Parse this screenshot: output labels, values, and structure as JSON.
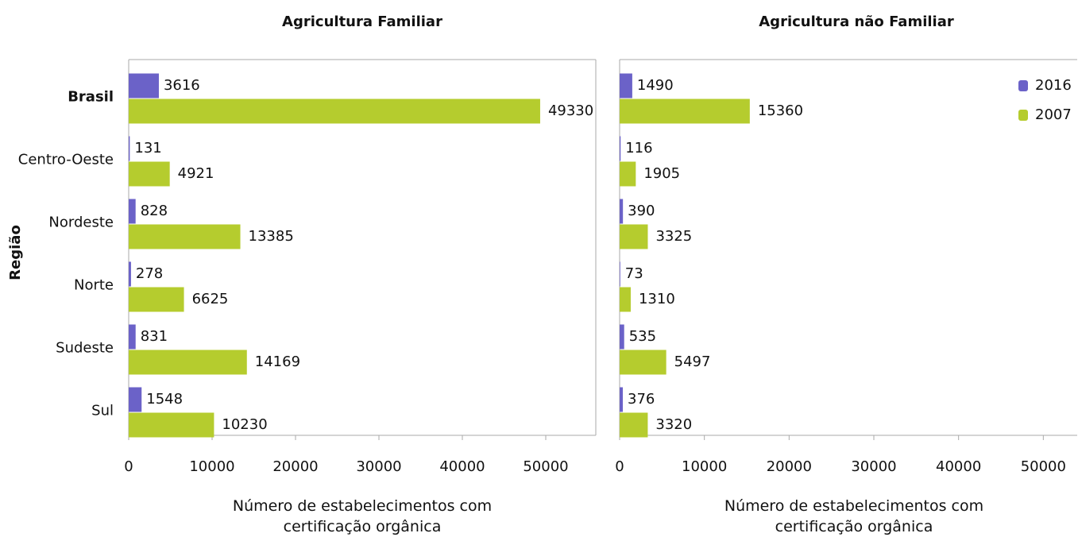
{
  "chart_data": [
    {
      "type": "hbar",
      "title": "Agricultura Familiar",
      "ylabel": "Região",
      "xlabel": "Número de estabelecimentos com certificação orgânica",
      "categories": [
        "Brasil",
        "Centro-Oeste",
        "Nordeste",
        "Norte",
        "Sudeste",
        "Sul"
      ],
      "series": [
        {
          "name": "2016",
          "color": "#6b62c8",
          "values": [
            3616,
            131,
            828,
            278,
            831,
            1548
          ]
        },
        {
          "name": "2007",
          "color": "#b5cc2e",
          "values": [
            49330,
            4921,
            13385,
            6625,
            14169,
            10230
          ]
        }
      ],
      "xlim": [
        0,
        56000
      ],
      "xticks": [
        0,
        10000,
        20000,
        30000,
        40000,
        50000
      ]
    },
    {
      "type": "hbar",
      "title": "Agricultura não Familiar",
      "xlabel": "Número de estabelecimentos com certificação orgânica",
      "categories": [
        "Brasil",
        "Centro-Oeste",
        "Nordeste",
        "Norte",
        "Sudeste",
        "Sul"
      ],
      "series": [
        {
          "name": "2016",
          "color": "#6b62c8",
          "values": [
            1490,
            116,
            390,
            73,
            535,
            376
          ]
        },
        {
          "name": "2007",
          "color": "#b5cc2e",
          "values": [
            15360,
            1905,
            3325,
            1310,
            5497,
            3320
          ]
        }
      ],
      "xlim": [
        0,
        54000
      ],
      "xticks": [
        0,
        10000,
        20000,
        30000,
        40000,
        50000
      ],
      "legend": "top-right"
    }
  ]
}
